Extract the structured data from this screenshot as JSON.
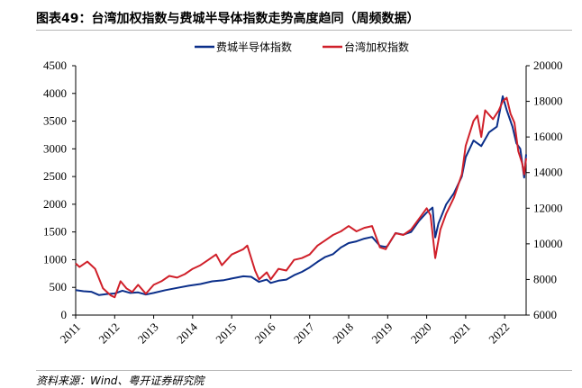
{
  "title": "图表49：台湾加权指数与费城半导体指数走势高度趋同（周频数据）",
  "source": "资料来源：Wind、粤开证券研究院",
  "colors": {
    "sox": "#0b2f8a",
    "taiex": "#d0202a"
  },
  "chart_data": {
    "type": "line",
    "title": "图表49：台湾加权指数与费城半导体指数走势高度趋同（周频数据）",
    "x_ticks": [
      "2011",
      "2012",
      "2013",
      "2014",
      "2015",
      "2016",
      "2017",
      "2018",
      "2019",
      "2020",
      "2021",
      "2022"
    ],
    "x_range": [
      2011.0,
      2022.55
    ],
    "y_left": {
      "range": [
        0,
        4500
      ],
      "ticks": [
        "0",
        "500",
        "1000",
        "1500",
        "2000",
        "2500",
        "3000",
        "3500",
        "4000",
        "4500"
      ]
    },
    "y_right": {
      "range": [
        6000,
        20000
      ],
      "ticks": [
        "6000",
        "8000",
        "10000",
        "12000",
        "14000",
        "16000",
        "18000",
        "20000"
      ]
    },
    "legend_position": "top-center",
    "grid": false,
    "series": [
      {
        "name": "费城半导体指数",
        "axis": "left",
        "points": [
          [
            2011.0,
            450
          ],
          [
            2011.2,
            430
          ],
          [
            2011.4,
            420
          ],
          [
            2011.6,
            360
          ],
          [
            2011.8,
            380
          ],
          [
            2012.0,
            390
          ],
          [
            2012.2,
            440
          ],
          [
            2012.4,
            400
          ],
          [
            2012.6,
            410
          ],
          [
            2012.8,
            370
          ],
          [
            2013.0,
            400
          ],
          [
            2013.3,
            450
          ],
          [
            2013.6,
            490
          ],
          [
            2013.9,
            530
          ],
          [
            2014.2,
            560
          ],
          [
            2014.5,
            610
          ],
          [
            2014.8,
            630
          ],
          [
            2015.0,
            660
          ],
          [
            2015.3,
            700
          ],
          [
            2015.5,
            690
          ],
          [
            2015.7,
            600
          ],
          [
            2015.9,
            640
          ],
          [
            2016.0,
            580
          ],
          [
            2016.2,
            620
          ],
          [
            2016.4,
            640
          ],
          [
            2016.6,
            720
          ],
          [
            2016.8,
            780
          ],
          [
            2017.0,
            860
          ],
          [
            2017.2,
            960
          ],
          [
            2017.4,
            1050
          ],
          [
            2017.6,
            1100
          ],
          [
            2017.8,
            1220
          ],
          [
            2018.0,
            1300
          ],
          [
            2018.2,
            1330
          ],
          [
            2018.4,
            1380
          ],
          [
            2018.6,
            1410
          ],
          [
            2018.8,
            1250
          ],
          [
            2018.95,
            1230
          ],
          [
            2019.0,
            1250
          ],
          [
            2019.2,
            1480
          ],
          [
            2019.4,
            1450
          ],
          [
            2019.6,
            1500
          ],
          [
            2019.8,
            1700
          ],
          [
            2020.0,
            1850
          ],
          [
            2020.15,
            1940
          ],
          [
            2020.22,
            1400
          ],
          [
            2020.3,
            1650
          ],
          [
            2020.5,
            2000
          ],
          [
            2020.7,
            2200
          ],
          [
            2020.9,
            2500
          ],
          [
            2021.0,
            2850
          ],
          [
            2021.2,
            3150
          ],
          [
            2021.4,
            3050
          ],
          [
            2021.6,
            3300
          ],
          [
            2021.8,
            3400
          ],
          [
            2021.95,
            3950
          ],
          [
            2022.05,
            3700
          ],
          [
            2022.2,
            3400
          ],
          [
            2022.3,
            3100
          ],
          [
            2022.4,
            3000
          ],
          [
            2022.5,
            2480
          ],
          [
            2022.55,
            2900
          ]
        ]
      },
      {
        "name": "台湾加权指数",
        "axis": "right",
        "points": [
          [
            2011.0,
            8900
          ],
          [
            2011.1,
            8700
          ],
          [
            2011.3,
            9000
          ],
          [
            2011.5,
            8600
          ],
          [
            2011.7,
            7500
          ],
          [
            2011.9,
            7100
          ],
          [
            2012.0,
            7000
          ],
          [
            2012.15,
            7900
          ],
          [
            2012.3,
            7500
          ],
          [
            2012.45,
            7300
          ],
          [
            2012.6,
            7700
          ],
          [
            2012.8,
            7200
          ],
          [
            2013.0,
            7700
          ],
          [
            2013.2,
            7900
          ],
          [
            2013.4,
            8200
          ],
          [
            2013.6,
            8100
          ],
          [
            2013.8,
            8300
          ],
          [
            2014.0,
            8600
          ],
          [
            2014.2,
            8800
          ],
          [
            2014.4,
            9100
          ],
          [
            2014.6,
            9400
          ],
          [
            2014.75,
            8800
          ],
          [
            2015.0,
            9400
          ],
          [
            2015.3,
            9700
          ],
          [
            2015.4,
            9900
          ],
          [
            2015.6,
            8500
          ],
          [
            2015.7,
            8000
          ],
          [
            2015.9,
            8400
          ],
          [
            2016.0,
            8000
          ],
          [
            2016.2,
            8600
          ],
          [
            2016.4,
            8500
          ],
          [
            2016.6,
            9100
          ],
          [
            2016.8,
            9200
          ],
          [
            2017.0,
            9400
          ],
          [
            2017.2,
            9900
          ],
          [
            2017.4,
            10200
          ],
          [
            2017.6,
            10500
          ],
          [
            2017.8,
            10700
          ],
          [
            2018.0,
            11000
          ],
          [
            2018.2,
            10700
          ],
          [
            2018.4,
            10900
          ],
          [
            2018.6,
            11000
          ],
          [
            2018.8,
            9800
          ],
          [
            2018.95,
            9700
          ],
          [
            2019.0,
            9900
          ],
          [
            2019.2,
            10600
          ],
          [
            2019.4,
            10500
          ],
          [
            2019.6,
            10800
          ],
          [
            2019.8,
            11400
          ],
          [
            2020.0,
            12000
          ],
          [
            2020.1,
            11600
          ],
          [
            2020.22,
            9200
          ],
          [
            2020.35,
            10800
          ],
          [
            2020.5,
            11700
          ],
          [
            2020.7,
            12600
          ],
          [
            2020.9,
            13900
          ],
          [
            2021.0,
            15500
          ],
          [
            2021.2,
            16900
          ],
          [
            2021.3,
            17200
          ],
          [
            2021.4,
            16000
          ],
          [
            2021.5,
            17500
          ],
          [
            2021.7,
            17000
          ],
          [
            2021.85,
            17500
          ],
          [
            2021.95,
            18000
          ],
          [
            2022.05,
            18200
          ],
          [
            2022.15,
            17300
          ],
          [
            2022.25,
            16800
          ],
          [
            2022.35,
            15200
          ],
          [
            2022.45,
            14500
          ],
          [
            2022.5,
            13900
          ],
          [
            2022.55,
            14800
          ]
        ]
      }
    ]
  }
}
